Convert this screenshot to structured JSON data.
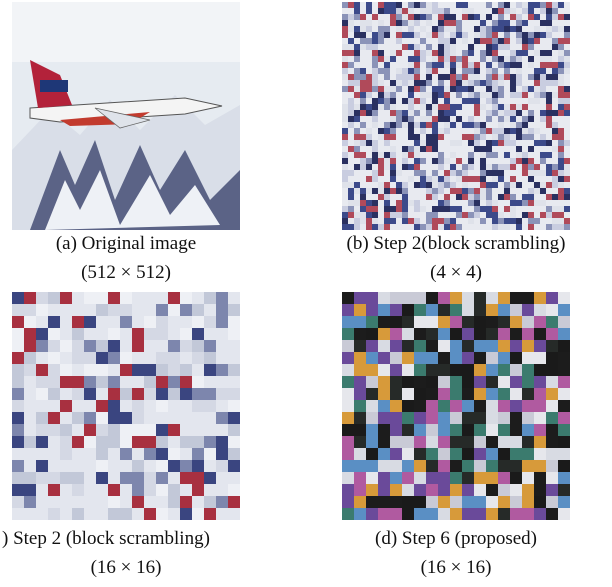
{
  "figures": [
    {
      "caption": "(a) Original image",
      "size": "(512 × 512)"
    },
    {
      "caption": "(b) Step 2(block scrambling)",
      "size": "(4 × 4)"
    },
    {
      "caption": ") Step 2 (block scrambling)",
      "size": "(16 × 16)"
    },
    {
      "caption": "(d) Step 6 (proposed)",
      "size": "(16 × 16)"
    }
  ]
}
